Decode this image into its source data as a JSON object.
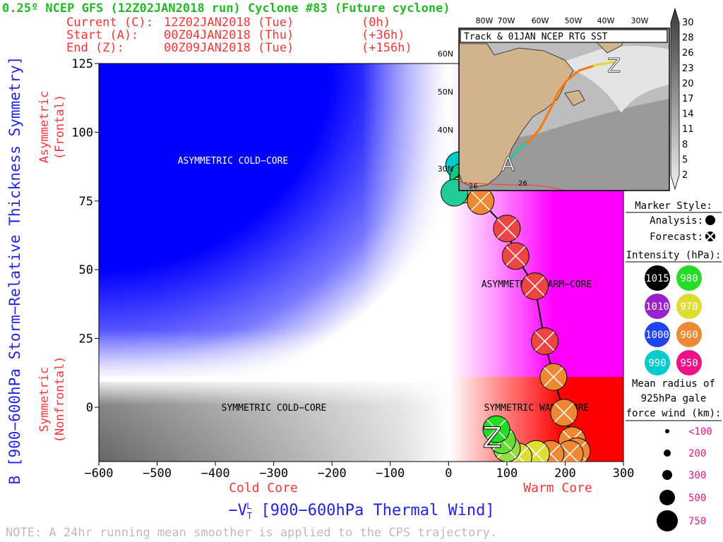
{
  "header": {
    "title": "0.25º NCEP GFS (12Z02JAN2018 run) Cyclone #83 (Future cyclone)",
    "current_label": "Current (C):",
    "current_time": "12Z02JAN2018 (Tue)",
    "current_offset": "(0h)",
    "start_label": "Start (A):",
    "start_time": "00Z04JAN2018 (Thu)",
    "start_offset": "(+36h)",
    "end_label": "End (Z):",
    "end_time": "00Z09JAN2018 (Tue)",
    "end_offset": "(+156h)"
  },
  "footer": {
    "note": "NOTE: A 24hr running mean smoother is applied to the CPS trajectory."
  },
  "colors": {
    "title": "#22bb22",
    "header": "#ff3333",
    "axis_title": "#2222ee",
    "region_label": "#ff3333",
    "cold": "#0000ff",
    "warm": "#ff0000",
    "note": "#bbbbbb",
    "track": "#000000"
  },
  "chart_data": {
    "type": "scatter",
    "xlabel": "−V",
    "xlabel_sup": "L",
    "xlabel_sub": "T",
    "xlabel_rest": " [900−600hPa Thermal Wind]",
    "ylabel": "B [900−600hPa Storm−Relative Thickness Symmetry]",
    "xlim": [
      -600,
      300
    ],
    "ylim": [
      -20,
      125
    ],
    "x_ticks": [
      -600,
      -500,
      -400,
      -300,
      -200,
      -100,
      0,
      100,
      200,
      300
    ],
    "x_tick_labels": [
      "−600",
      "−500",
      "−400",
      "−300",
      "−200",
      "−100",
      "0",
      "100",
      "200",
      "300"
    ],
    "y_ticks": [
      0,
      25,
      50,
      75,
      100,
      125
    ],
    "y_tick_labels": [
      "0",
      "25",
      "50",
      "75",
      "100",
      "125"
    ],
    "region_labels": [
      {
        "text": "ASYMMETRIC COLD−CORE",
        "x": -380,
        "y": 90
      },
      {
        "text": "ASYMMETRIC WARM−CORE",
        "x": 150,
        "y": 45
      },
      {
        "text": "SYMMETRIC COLD−CORE",
        "x": -300,
        "y": 0
      },
      {
        "text": "SYMMETRIC WARM−CORE",
        "x": 150,
        "y": 0
      }
    ],
    "x_side_labels": {
      "cold": "Cold Core",
      "warm": "Warm Core"
    },
    "y_side_labels": {
      "asym": [
        "Asymmetric",
        "(Frontal)"
      ],
      "sym": [
        "Symmetric",
        "(Nonfrontal)"
      ]
    },
    "start_marker": "A",
    "end_marker": "Z",
    "end_marker_pos": {
      "x": 75,
      "y": -10
    },
    "points": [
      {
        "x": 18,
        "y": 88,
        "color": "#00cccc",
        "type": "analysis"
      },
      {
        "x": 25,
        "y": 84,
        "color": "#00cc88",
        "type": "analysis"
      },
      {
        "x": 28,
        "y": 80,
        "color": "#44dd66",
        "type": "analysis"
      },
      {
        "x": 22,
        "y": 79,
        "color": "#dddd33",
        "type": "analysis"
      },
      {
        "x": 10,
        "y": 78,
        "color": "#22cc99",
        "type": "analysis"
      },
      {
        "x": 55,
        "y": 75,
        "color": "#ee8833",
        "type": "forecast"
      },
      {
        "x": 100,
        "y": 65,
        "color": "#ee4444",
        "type": "forecast"
      },
      {
        "x": 115,
        "y": 55,
        "color": "#ee4444",
        "type": "forecast"
      },
      {
        "x": 148,
        "y": 44,
        "color": "#ee4444",
        "type": "forecast"
      },
      {
        "x": 165,
        "y": 24,
        "color": "#ee4444",
        "type": "forecast"
      },
      {
        "x": 180,
        "y": 11,
        "color": "#ee8833",
        "type": "forecast"
      },
      {
        "x": 198,
        "y": -2,
        "color": "#ee8833",
        "type": "forecast"
      },
      {
        "x": 212,
        "y": -12,
        "color": "#ee8833",
        "type": "forecast"
      },
      {
        "x": 220,
        "y": -16,
        "color": "#ee8833",
        "type": "forecast"
      },
      {
        "x": 208,
        "y": -17,
        "color": "#ee8833",
        "type": "forecast"
      },
      {
        "x": 175,
        "y": -17,
        "color": "#ee8833",
        "type": "forecast"
      },
      {
        "x": 150,
        "y": -17,
        "color": "#dddd33",
        "type": "forecast"
      },
      {
        "x": 120,
        "y": -18,
        "color": "#dddd33",
        "type": "forecast"
      },
      {
        "x": 100,
        "y": -15,
        "color": "#99dd44",
        "type": "forecast"
      },
      {
        "x": 92,
        "y": -12,
        "color": "#66dd33",
        "type": "forecast"
      },
      {
        "x": 82,
        "y": -8,
        "color": "#22dd22",
        "type": "forecast"
      }
    ],
    "inset": {
      "title": "Track & 01JAN NCEP RTG SST",
      "lon_labels": [
        "80W",
        "70W",
        "60W",
        "50W",
        "40W",
        "30W"
      ],
      "lat_labels": [
        "60N",
        "50N",
        "40N",
        "30N"
      ],
      "contour_labels": [
        "26",
        "26"
      ],
      "start_marker": "A",
      "end_marker": "Z"
    },
    "colorbar": {
      "labels": [
        "30",
        "28",
        "26",
        "23",
        "20",
        "17",
        "14",
        "11",
        "8",
        "5",
        "2"
      ]
    },
    "legend": {
      "marker_style_title": "Marker Style:",
      "analysis_label": "Analysis:",
      "forecast_label": "Forecast:",
      "intensity_title": "Intensity (hPa):",
      "intensity": [
        {
          "label": "1015",
          "color": "#000000"
        },
        {
          "label": "980",
          "color": "#22dd22"
        },
        {
          "label": "1010",
          "color": "#9922cc"
        },
        {
          "label": "970",
          "color": "#dddd33"
        },
        {
          "label": "1000",
          "color": "#2244ee"
        },
        {
          "label": "960",
          "color": "#ee8833"
        },
        {
          "label": "990",
          "color": "#00cccc"
        },
        {
          "label": "950",
          "color": "#ee1188"
        }
      ],
      "radius_title": [
        "Mean radius of",
        "925hPa gale",
        "force wind (km):"
      ],
      "radius": [
        {
          "label": "<100"
        },
        {
          "label": "200"
        },
        {
          "label": "300"
        },
        {
          "label": "500"
        },
        {
          "label": "750"
        }
      ]
    }
  }
}
